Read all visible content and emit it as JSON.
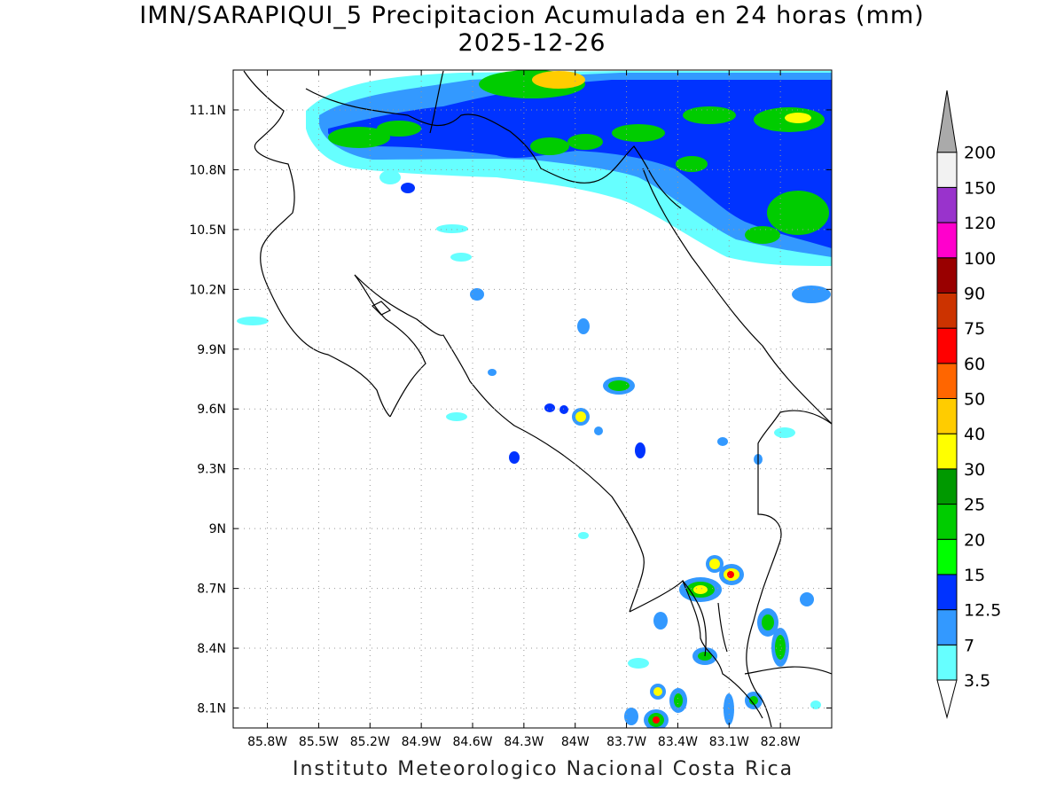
{
  "title": {
    "line1": "IMN/SARAPIQUI_5 Precipitacion Acumulada en 24 horas (mm)",
    "line2": "2025-12-26"
  },
  "footer": "Instituto Meteorologico Nacional Costa Rica",
  "map": {
    "lat_range": [
      8.0,
      11.3
    ],
    "lon_range": [
      -86.0,
      -82.5
    ],
    "lat_ticks": [
      {
        "value": 11.1,
        "label": "11.1N"
      },
      {
        "value": 10.8,
        "label": "10.8N"
      },
      {
        "value": 10.5,
        "label": "10.5N"
      },
      {
        "value": 10.2,
        "label": "10.2N"
      },
      {
        "value": 9.9,
        "label": "9.9N"
      },
      {
        "value": 9.6,
        "label": "9.6N"
      },
      {
        "value": 9.3,
        "label": "9.3N"
      },
      {
        "value": 9.0,
        "label": "9N"
      },
      {
        "value": 8.7,
        "label": "8.7N"
      },
      {
        "value": 8.4,
        "label": "8.4N"
      },
      {
        "value": 8.1,
        "label": "8.1N"
      }
    ],
    "lon_ticks": [
      {
        "value": -85.8,
        "label": "85.8W"
      },
      {
        "value": -85.5,
        "label": "85.5W"
      },
      {
        "value": -85.2,
        "label": "85.2W"
      },
      {
        "value": -84.9,
        "label": "84.9W"
      },
      {
        "value": -84.6,
        "label": "84.6W"
      },
      {
        "value": -84.3,
        "label": "84.3W"
      },
      {
        "value": -84.0,
        "label": "84W"
      },
      {
        "value": -83.7,
        "label": "83.7W"
      },
      {
        "value": -83.4,
        "label": "83.4W"
      },
      {
        "value": -83.1,
        "label": "83.1W"
      },
      {
        "value": -82.8,
        "label": "82.8W"
      }
    ]
  },
  "legend": {
    "levels": [
      {
        "label": "3.5",
        "color": "#66ffff"
      },
      {
        "label": "7",
        "color": "#3399ff"
      },
      {
        "label": "12.5",
        "color": "#0033ff"
      },
      {
        "label": "15",
        "color": "#00ff00"
      },
      {
        "label": "20",
        "color": "#00cc00"
      },
      {
        "label": "25",
        "color": "#009900"
      },
      {
        "label": "30",
        "color": "#ffff00"
      },
      {
        "label": "40",
        "color": "#ffcc00"
      },
      {
        "label": "50",
        "color": "#ff6600"
      },
      {
        "label": "60",
        "color": "#ff0000"
      },
      {
        "label": "75",
        "color": "#cc3300"
      },
      {
        "label": "90",
        "color": "#990000"
      },
      {
        "label": "100",
        "color": "#ff00cc"
      },
      {
        "label": "120",
        "color": "#9933cc"
      },
      {
        "label": "150",
        "color": "#f2f2f2"
      },
      {
        "label": "200",
        "color": "#aaaaaa"
      }
    ]
  }
}
